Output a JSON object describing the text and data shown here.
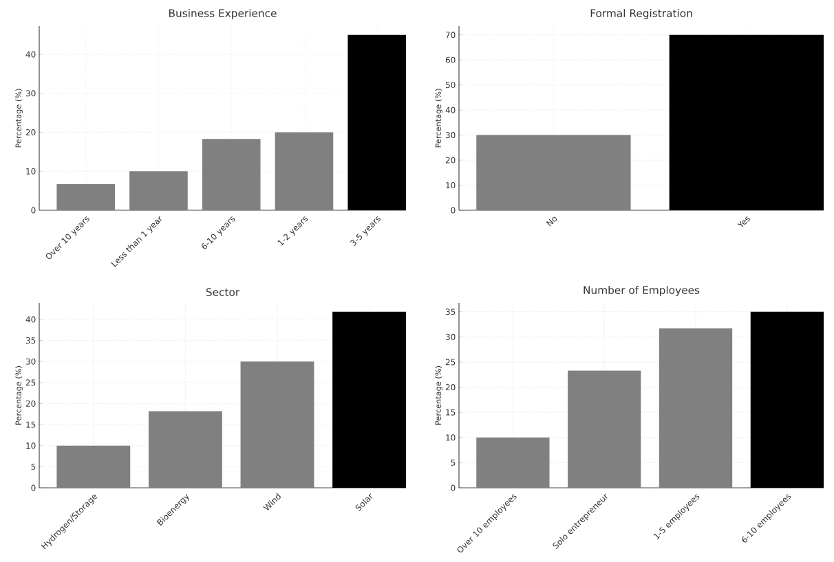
{
  "chart_data": [
    {
      "type": "bar",
      "title": "Business Experience",
      "ylabel": "Percentage (%)",
      "categories": [
        "Over 10 years",
        "Less than 1 year",
        "6-10 years",
        "1-2 years",
        "3-5 years"
      ],
      "values": [
        6.7,
        10,
        18.3,
        20,
        45
      ],
      "colors": [
        "#808080",
        "#808080",
        "#808080",
        "#808080",
        "#000000"
      ],
      "ylim": [
        0,
        47.25
      ],
      "yticks": [
        0,
        10,
        20,
        30,
        40
      ],
      "grid": true
    },
    {
      "type": "bar",
      "title": "Formal Registration",
      "ylabel": "Percentage (%)",
      "categories": [
        "No",
        "Yes"
      ],
      "values": [
        30,
        70
      ],
      "colors": [
        "#808080",
        "#000000"
      ],
      "ylim": [
        0,
        73.5
      ],
      "yticks": [
        0,
        10,
        20,
        30,
        40,
        50,
        60,
        70
      ],
      "grid": true
    },
    {
      "type": "bar",
      "title": "Sector",
      "ylabel": "Percentage (%)",
      "categories": [
        "Hydrogen/Storage",
        "Bioenergy",
        "Wind",
        "Solar"
      ],
      "values": [
        10,
        18.2,
        30,
        41.8
      ],
      "colors": [
        "#808080",
        "#808080",
        "#808080",
        "#000000"
      ],
      "ylim": [
        0,
        43.9
      ],
      "yticks": [
        0,
        5,
        10,
        15,
        20,
        25,
        30,
        35,
        40
      ],
      "grid": true
    },
    {
      "type": "bar",
      "title": "Number of Employees",
      "ylabel": "Percentage (%)",
      "categories": [
        "Over 10 employees",
        "Solo entrepreneur",
        "1-5 employees",
        "6-10 employees"
      ],
      "values": [
        10,
        23.3,
        31.7,
        35
      ],
      "colors": [
        "#808080",
        "#808080",
        "#808080",
        "#000000"
      ],
      "ylim": [
        0,
        36.75
      ],
      "yticks": [
        0,
        5,
        10,
        15,
        20,
        25,
        30,
        35
      ],
      "grid": true
    }
  ]
}
